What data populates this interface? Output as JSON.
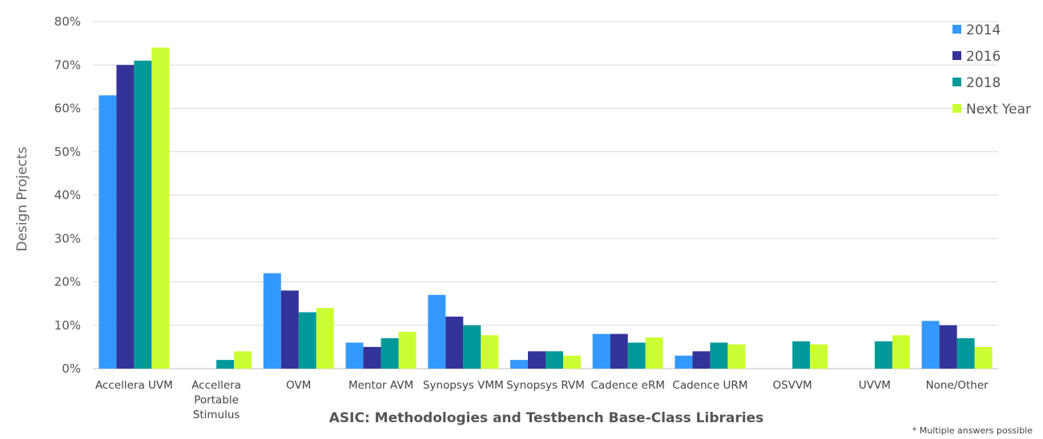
{
  "chart_data": {
    "type": "bar",
    "title": "",
    "xlabel": "ASIC: Methodologies and Testbench Base-Class Libraries",
    "ylabel": "Design Projects",
    "footnote": "* Multiple answers possible",
    "ylim": [
      0,
      80
    ],
    "yticks": [
      "0%",
      "10%",
      "20%",
      "30%",
      "40%",
      "50%",
      "60%",
      "70%",
      "80%"
    ],
    "ytick_values": [
      0,
      10,
      20,
      30,
      40,
      50,
      60,
      70,
      80
    ],
    "grid": true,
    "legend_position": "top-right",
    "categories": [
      [
        "Accellera UVM"
      ],
      [
        "Accellera",
        "Portable",
        "Stimulus"
      ],
      [
        "OVM"
      ],
      [
        "Mentor AVM"
      ],
      [
        "Synopsys VMM"
      ],
      [
        "Synopsys RVM"
      ],
      [
        "Cadence eRM"
      ],
      [
        "Cadence URM"
      ],
      [
        "OSVVM"
      ],
      [
        "UVVM"
      ],
      [
        "None/Other"
      ]
    ],
    "series": [
      {
        "name": "2014",
        "color": "#3399ff",
        "values": [
          63,
          null,
          22,
          6,
          17,
          2,
          8,
          3,
          null,
          null,
          11
        ]
      },
      {
        "name": "2016",
        "color": "#333399",
        "values": [
          70,
          null,
          18,
          5,
          12,
          4,
          8,
          4,
          null,
          null,
          10
        ]
      },
      {
        "name": "2018",
        "color": "#009999",
        "values": [
          71,
          2,
          13,
          7,
          10,
          4,
          6,
          6,
          6.3,
          6.3,
          7
        ]
      },
      {
        "name": "Next Year",
        "color": "#ccff33",
        "values": [
          74,
          4,
          14,
          8.5,
          7.7,
          3,
          7.2,
          5.6,
          5.6,
          7.7,
          5
        ]
      }
    ]
  }
}
